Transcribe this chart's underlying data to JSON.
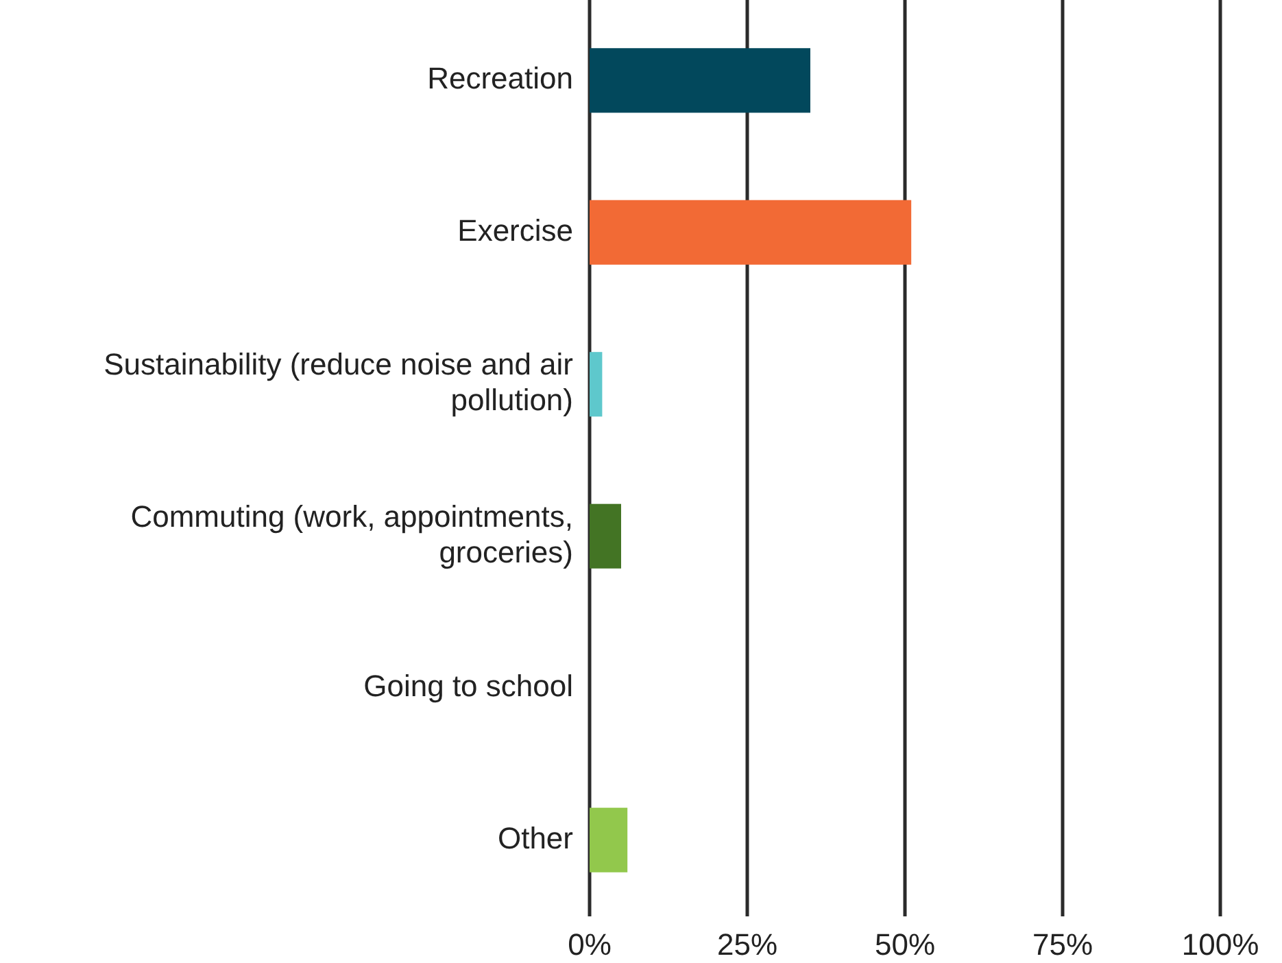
{
  "chart_data": {
    "type": "bar",
    "orientation": "horizontal",
    "categories": [
      "Recreation",
      "Exercise",
      "Sustainability (reduce noise and air pollution)",
      "Commuting (work, appointments, groceries)",
      "Going to school",
      "Other"
    ],
    "values": [
      35,
      51,
      2,
      5,
      0,
      6
    ],
    "colors": [
      "#02485c",
      "#f26a35",
      "#5ec8cc",
      "#437424",
      "#cccccc",
      "#92c84c"
    ],
    "xlim": [
      0,
      100
    ],
    "xticks": [
      {
        "value": 0,
        "label": "0%"
      },
      {
        "value": 25,
        "label": "25%"
      },
      {
        "value": 50,
        "label": "50%"
      },
      {
        "value": 75,
        "label": "75%"
      },
      {
        "value": 100,
        "label": "100%"
      }
    ],
    "grid": "x"
  }
}
